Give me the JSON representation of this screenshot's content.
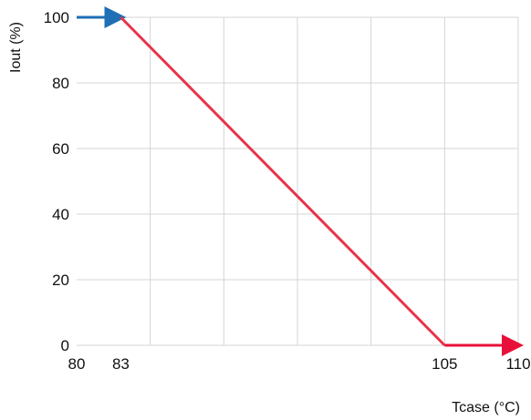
{
  "chart_data": {
    "type": "line",
    "title": "",
    "xlabel": "Tcase (°C)",
    "ylabel": "Iout (%)",
    "xlim": [
      80,
      110
    ],
    "ylim": [
      0,
      100
    ],
    "x_ticks": [
      80,
      83,
      105,
      110
    ],
    "y_ticks": [
      0,
      20,
      40,
      60,
      80,
      100
    ],
    "x_gridlines": [
      85,
      90,
      95,
      100,
      105,
      110
    ],
    "y_gridlines": [
      0,
      20,
      40,
      60,
      80,
      100
    ],
    "grid": true,
    "series": [
      {
        "x": [
          80,
          83
        ],
        "y": [
          100,
          100
        ],
        "color": "#1f6fb5",
        "arrow_end": true
      },
      {
        "x": [
          83,
          105
        ],
        "y": [
          100,
          0
        ],
        "color": "#e8334a",
        "arrow_end": false
      },
      {
        "x": [
          105,
          110
        ],
        "y": [
          0,
          0
        ],
        "color": "#e8103a",
        "arrow_end": true
      }
    ]
  }
}
